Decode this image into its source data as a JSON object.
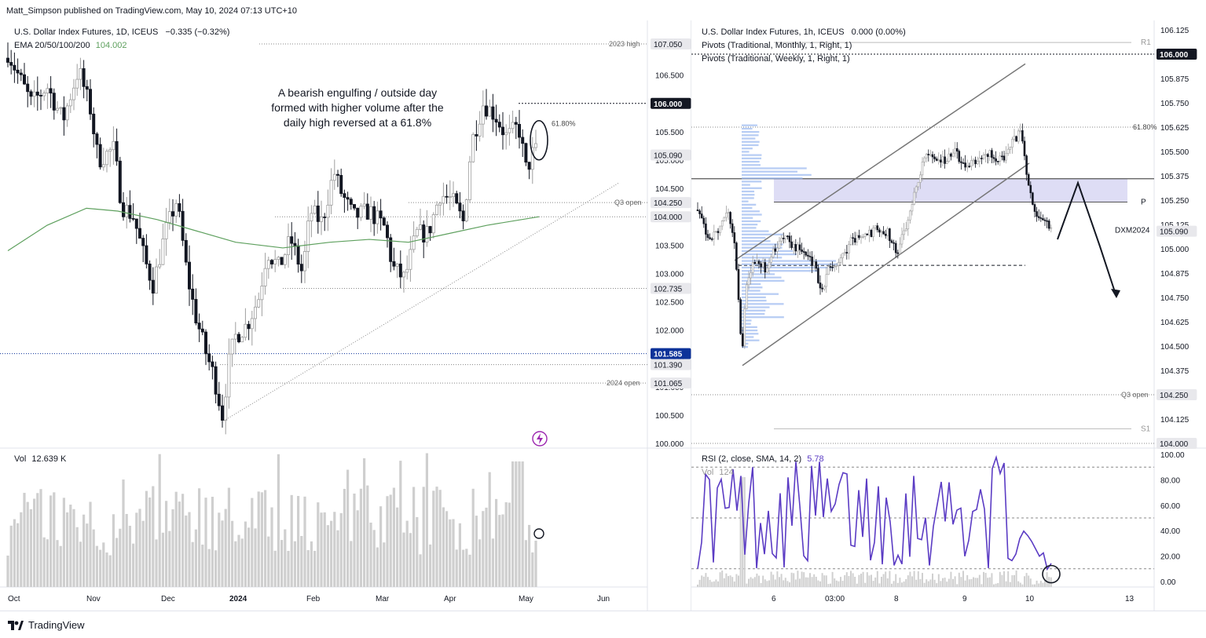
{
  "publisher_line": "Matt_Simpson published on TradingView.com, May 10, 2024 07:13 UTC+10",
  "footer_brand": "TradingView",
  "left": {
    "title": "U.S. Dollar Index Futures, 1D, ICEUS",
    "change": "−0.335 (−0.32%)",
    "ema_label": "EMA 20/50/100/200",
    "ema_value": "104.002",
    "vol_label": "Vol",
    "vol_value": "12.639 K",
    "annotation": [
      "A bearish engulfing / outside day",
      "formed with higher volume after the",
      "daily high reversed at a 61.8%"
    ],
    "fib_label": "61.80%",
    "level_2023_high": "2023 high",
    "level_q3_open": "Q3 open",
    "level_2024_open": "2024 open",
    "price_tags": [
      "107.050",
      "106.000",
      "105.090",
      "104.250",
      "104.000",
      "102.735",
      "101.585",
      "101.390",
      "101.065"
    ],
    "y_ticks": [
      "106.500",
      "106.000",
      "105.500",
      "105.000",
      "104.500",
      "104.000",
      "103.500",
      "103.000",
      "102.500",
      "102.000",
      "101.500",
      "101.000",
      "100.500",
      "100.000"
    ],
    "x_ticks": [
      "Oct",
      "Nov",
      "Dec",
      "2024",
      "Feb",
      "Mar",
      "Apr",
      "May",
      "Jun"
    ]
  },
  "right": {
    "title": "U.S. Dollar Index Futures, 1h, ICEUS",
    "change": "0.000 (0.00%)",
    "pivots_monthly": "Pivots (Traditional, Monthly, 1, Right, 1)",
    "pivots_weekly": "Pivots (Traditional, Weekly, 1, Right, 1)",
    "rsi_label": "RSI (2, close, SMA, 14, 2)",
    "rsi_value": "5.78",
    "vol_label": "Vol",
    "vol_value": "124",
    "label_r1": "R1",
    "label_p": "P",
    "label_s1": "S1",
    "label_dxm": "DXM2024",
    "label_fib": "61.80%",
    "label_q3": "Q3 open",
    "price_tags": [
      "106.000",
      "105.090",
      "104.250",
      "104.000"
    ],
    "y_ticks": [
      "106.125",
      "105.875",
      "105.750",
      "105.625",
      "105.500",
      "105.375",
      "105.250",
      "105.125",
      "105.000",
      "104.875",
      "104.750",
      "104.625",
      "104.500",
      "104.375",
      "104.125"
    ],
    "rsi_ticks": [
      "100.00",
      "80.00",
      "60.00",
      "40.00",
      "20.00",
      "0.00"
    ],
    "x_ticks": [
      "6",
      "03:00",
      "8",
      "9",
      "10",
      "13"
    ]
  },
  "colors": {
    "up": "#9e9e9e",
    "down": "#131722",
    "ema": "#5ea05e",
    "rsi": "#5b3cc4",
    "zone": "#d6d4f2",
    "profile": "#9ab8f0",
    "volume": "#d0d0d0"
  },
  "chart_data": [
    {
      "type": "candlestick",
      "title": "U.S. Dollar Index Futures, 1D, ICEUS",
      "x_range": [
        "Oct 2023",
        "Jun 2024"
      ],
      "ylim": [
        100.0,
        107.2
      ],
      "series": [
        {
          "name": "EMA 20/50/100/200",
          "values": [
            103.5,
            104.0,
            104.0,
            103.9,
            103.7,
            103.5,
            103.4,
            103.5,
            103.6,
            103.8,
            104.0
          ]
        }
      ],
      "key_points": {
        "2023 high": 107.05,
        "low": 100.4,
        "May high": 106.4,
        "close": 105.09
      }
    },
    {
      "type": "candlestick",
      "title": "U.S. Dollar Index Futures, 1h, ICEUS",
      "x_range": [
        "May 3",
        "May 13"
      ],
      "ylim": [
        104.0,
        106.15
      ],
      "key_points": {
        "low": 104.4,
        "high": 105.65,
        "last": 105.09
      }
    },
    {
      "type": "line",
      "title": "RSI (2, close, SMA, 14, 2)",
      "ylim": [
        0,
        100
      ],
      "last": 5.78
    }
  ]
}
